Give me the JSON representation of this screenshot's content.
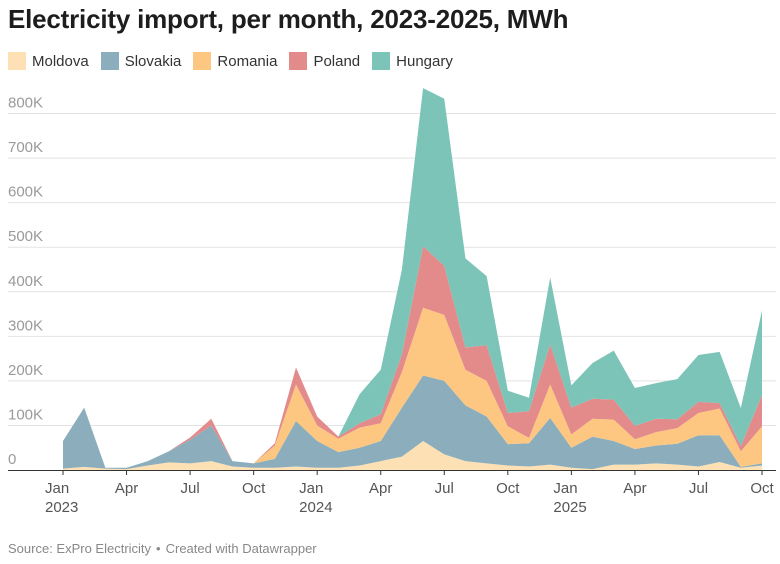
{
  "title": "Electricity import, per month, 2023-2025, MWh",
  "footer": {
    "source": "Source: ExPro Electricity",
    "separator": "•",
    "credit": "Created with Datawrapper"
  },
  "chart_data": {
    "type": "area",
    "stacked": true,
    "title": "Electricity import, per month, 2023-2025, MWh",
    "xlabel": "",
    "ylabel": "",
    "ylim": [
      0,
      850000
    ],
    "yticks": [
      0,
      100000,
      200000,
      300000,
      400000,
      500000,
      600000,
      700000,
      800000
    ],
    "ytick_labels": [
      "0",
      "100K",
      "200K",
      "300K",
      "400K",
      "500K",
      "600K",
      "700K",
      "800K"
    ],
    "x_tick_labels": [
      {
        "i": 0,
        "line1": "Jan",
        "line2": "2023"
      },
      {
        "i": 3,
        "line1": "Apr",
        "line2": ""
      },
      {
        "i": 6,
        "line1": "Jul",
        "line2": ""
      },
      {
        "i": 9,
        "line1": "Oct",
        "line2": ""
      },
      {
        "i": 12,
        "line1": "Jan",
        "line2": "2024"
      },
      {
        "i": 15,
        "line1": "Apr",
        "line2": ""
      },
      {
        "i": 18,
        "line1": "Jul",
        "line2": ""
      },
      {
        "i": 21,
        "line1": "Oct",
        "line2": ""
      },
      {
        "i": 24,
        "line1": "Jan",
        "line2": "2025"
      },
      {
        "i": 27,
        "line1": "Apr",
        "line2": ""
      },
      {
        "i": 30,
        "line1": "Jul",
        "line2": ""
      },
      {
        "i": 33,
        "line1": "Oct",
        "line2": ""
      }
    ],
    "grid": true,
    "legend_position": "top-left",
    "categories": [
      "Jan 2023",
      "Feb 2023",
      "Mar 2023",
      "Apr 2023",
      "May 2023",
      "Jun 2023",
      "Jul 2023",
      "Aug 2023",
      "Sep 2023",
      "Oct 2023",
      "Nov 2023",
      "Dec 2023",
      "Jan 2024",
      "Feb 2024",
      "Mar 2024",
      "Apr 2024",
      "May 2024",
      "Jun 2024",
      "Jul 2024",
      "Aug 2024",
      "Sep 2024",
      "Oct 2024",
      "Nov 2024",
      "Dec 2024",
      "Jan 2025",
      "Feb 2025",
      "Mar 2025",
      "Apr 2025",
      "May 2025",
      "Jun 2025",
      "Jul 2025",
      "Aug 2025",
      "Sep 2025",
      "Oct 2025"
    ],
    "series": [
      {
        "name": "Moldova",
        "color": "#fde0b3",
        "values": [
          3000,
          7000,
          3000,
          2000,
          10000,
          17000,
          15000,
          20000,
          8000,
          5000,
          5000,
          8000,
          5000,
          5000,
          10000,
          20000,
          30000,
          65000,
          35000,
          20000,
          15000,
          10000,
          8000,
          12000,
          5000,
          2000,
          12000,
          12000,
          15000,
          12000,
          8000,
          18000,
          5000,
          10000
        ]
      },
      {
        "name": "Slovakia",
        "color": "#8caebc",
        "values": [
          62000,
          133000,
          2000,
          3000,
          10000,
          25000,
          53000,
          80000,
          12000,
          10000,
          20000,
          102000,
          60000,
          35000,
          40000,
          45000,
          110000,
          147000,
          165000,
          125000,
          105000,
          48000,
          52000,
          105000,
          45000,
          73000,
          53000,
          35000,
          40000,
          47000,
          70000,
          60000,
          2000,
          5000
        ]
      },
      {
        "name": "Romania",
        "color": "#fdc782",
        "values": [
          0,
          0,
          0,
          0,
          0,
          0,
          0,
          0,
          0,
          0,
          30000,
          82000,
          35000,
          30000,
          45000,
          40000,
          80000,
          152000,
          148000,
          80000,
          80000,
          40000,
          12000,
          75000,
          30000,
          40000,
          48000,
          22000,
          30000,
          35000,
          50000,
          60000,
          35000,
          83000
        ]
      },
      {
        "name": "Poland",
        "color": "#e38a8a",
        "values": [
          0,
          0,
          0,
          0,
          0,
          0,
          5000,
          15000,
          0,
          0,
          5000,
          38000,
          20000,
          5000,
          10000,
          20000,
          40000,
          138000,
          110000,
          50000,
          80000,
          30000,
          60000,
          90000,
          60000,
          45000,
          45000,
          30000,
          30000,
          20000,
          25000,
          12000,
          12000,
          70000
        ]
      },
      {
        "name": "Hungary",
        "color": "#7dc4b8",
        "values": [
          0,
          0,
          0,
          0,
          0,
          0,
          0,
          0,
          0,
          0,
          0,
          0,
          0,
          0,
          65000,
          100000,
          190000,
          355000,
          375000,
          200000,
          155000,
          50000,
          30000,
          150000,
          50000,
          80000,
          110000,
          85000,
          80000,
          90000,
          105000,
          115000,
          85000,
          190000
        ]
      }
    ]
  }
}
